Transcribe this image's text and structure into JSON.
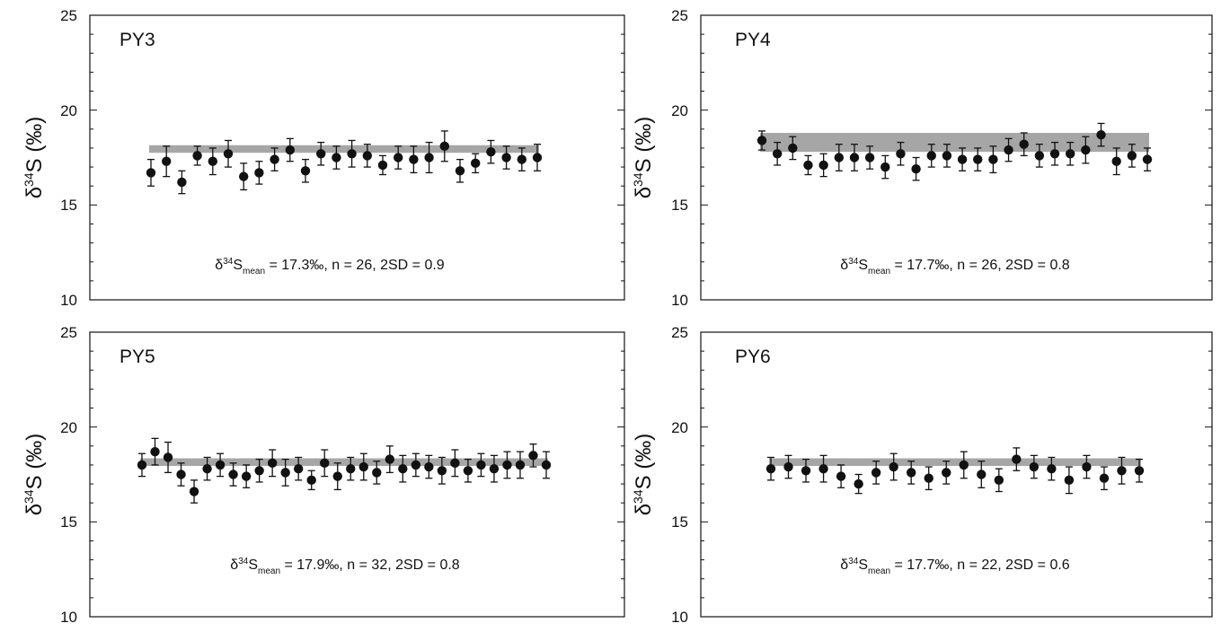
{
  "colors": {
    "marker": "#111111",
    "band": "#a6a6a6",
    "axis": "#111111"
  },
  "chart_data": [
    {
      "type": "scatter",
      "panel_label": "PY3",
      "ylabel": {
        "prefix": "δ",
        "sup": "34",
        "main": "S (‰)"
      },
      "ylim": [
        10,
        25
      ],
      "yticks": [
        "10",
        "15",
        "20",
        "25"
      ],
      "band": {
        "y1": 17.75,
        "y2": 18.15
      },
      "stats": {
        "prefix": "δ",
        "sup": "34",
        "main": "S",
        "sub": "mean",
        "rest": " = 17.3‰, n = 26, 2SD = 0.9"
      },
      "series": [
        {
          "y": [
            16.7,
            17.3,
            16.2,
            17.6,
            17.3,
            17.7,
            16.5,
            16.7,
            17.4,
            17.9,
            16.8,
            17.7,
            17.5,
            17.7,
            17.6,
            17.1,
            17.5,
            17.4,
            17.5,
            18.1,
            16.8,
            17.2,
            17.8,
            17.5,
            17.4,
            17.5
          ],
          "err": [
            0.7,
            0.8,
            0.6,
            0.5,
            0.7,
            0.7,
            0.7,
            0.6,
            0.6,
            0.6,
            0.6,
            0.6,
            0.6,
            0.7,
            0.6,
            0.5,
            0.6,
            0.7,
            0.8,
            0.8,
            0.6,
            0.5,
            0.6,
            0.6,
            0.6,
            0.7
          ]
        }
      ]
    },
    {
      "type": "scatter",
      "panel_label": "PY4",
      "ylabel": {
        "prefix": "δ",
        "sup": "34",
        "main": "S (‰)"
      },
      "ylim": [
        10,
        25
      ],
      "yticks": [
        "10",
        "15",
        "20",
        "25"
      ],
      "band": {
        "y1": 17.8,
        "y2": 18.8
      },
      "stats": {
        "prefix": "δ",
        "sup": "34",
        "main": "S",
        "sub": "mean",
        "rest": " = 17.7‰, n = 26, 2SD = 0.8"
      },
      "series": [
        {
          "y": [
            18.4,
            17.7,
            18.0,
            17.1,
            17.1,
            17.5,
            17.5,
            17.5,
            17.0,
            17.7,
            16.9,
            17.6,
            17.6,
            17.4,
            17.4,
            17.4,
            17.9,
            18.2,
            17.6,
            17.7,
            17.7,
            17.9,
            18.7,
            17.3,
            17.6,
            17.4
          ],
          "err": [
            0.5,
            0.6,
            0.6,
            0.5,
            0.6,
            0.7,
            0.7,
            0.6,
            0.6,
            0.6,
            0.6,
            0.6,
            0.6,
            0.6,
            0.6,
            0.7,
            0.6,
            0.6,
            0.6,
            0.6,
            0.6,
            0.7,
            0.6,
            0.7,
            0.6,
            0.6
          ]
        }
      ]
    },
    {
      "type": "scatter",
      "panel_label": "PY5",
      "ylabel": {
        "prefix": "δ",
        "sup": "34",
        "main": "S (‰)"
      },
      "ylim": [
        10,
        25
      ],
      "yticks": [
        "10",
        "15",
        "20",
        "25"
      ],
      "band": {
        "y1": 17.95,
        "y2": 18.35
      },
      "stats": {
        "prefix": "δ",
        "sup": "34",
        "main": "S",
        "sub": "mean",
        "rest": " = 17.9‰, n = 32, 2SD = 0.8"
      },
      "series": [
        {
          "y": [
            18.0,
            18.7,
            18.4,
            17.5,
            16.6,
            17.8,
            18.0,
            17.5,
            17.4,
            17.7,
            18.1,
            17.6,
            17.8,
            17.2,
            18.1,
            17.4,
            17.8,
            17.9,
            17.6,
            18.3,
            17.8,
            18.0,
            17.9,
            17.7,
            18.1,
            17.7,
            18.0,
            17.8,
            18.0,
            18.0,
            18.5,
            18.0
          ],
          "err": [
            0.6,
            0.7,
            0.8,
            0.6,
            0.6,
            0.6,
            0.6,
            0.6,
            0.6,
            0.6,
            0.7,
            0.7,
            0.6,
            0.5,
            0.7,
            0.7,
            0.6,
            0.7,
            0.6,
            0.7,
            0.7,
            0.6,
            0.6,
            0.7,
            0.7,
            0.6,
            0.6,
            0.7,
            0.7,
            0.7,
            0.6,
            0.7
          ]
        }
      ]
    },
    {
      "type": "scatter",
      "panel_label": "PY6",
      "ylabel": {
        "prefix": "δ",
        "sup": "34",
        "main": "S (‰)"
      },
      "ylim": [
        10,
        25
      ],
      "yticks": [
        "10",
        "15",
        "20",
        "25"
      ],
      "band": {
        "y1": 17.95,
        "y2": 18.35
      },
      "stats": {
        "prefix": "δ",
        "sup": "34",
        "main": "S",
        "sub": "mean",
        "rest": " = 17.7‰, n = 22, 2SD = 0.6"
      },
      "series": [
        {
          "y": [
            17.8,
            17.9,
            17.7,
            17.8,
            17.4,
            17.0,
            17.6,
            17.9,
            17.6,
            17.3,
            17.6,
            18.0,
            17.5,
            17.2,
            18.3,
            17.9,
            17.8,
            17.2,
            17.9,
            17.3,
            17.7,
            17.7
          ],
          "err": [
            0.6,
            0.6,
            0.6,
            0.7,
            0.6,
            0.5,
            0.6,
            0.7,
            0.6,
            0.6,
            0.6,
            0.7,
            0.7,
            0.6,
            0.6,
            0.6,
            0.6,
            0.7,
            0.6,
            0.6,
            0.7,
            0.6
          ]
        }
      ]
    }
  ]
}
